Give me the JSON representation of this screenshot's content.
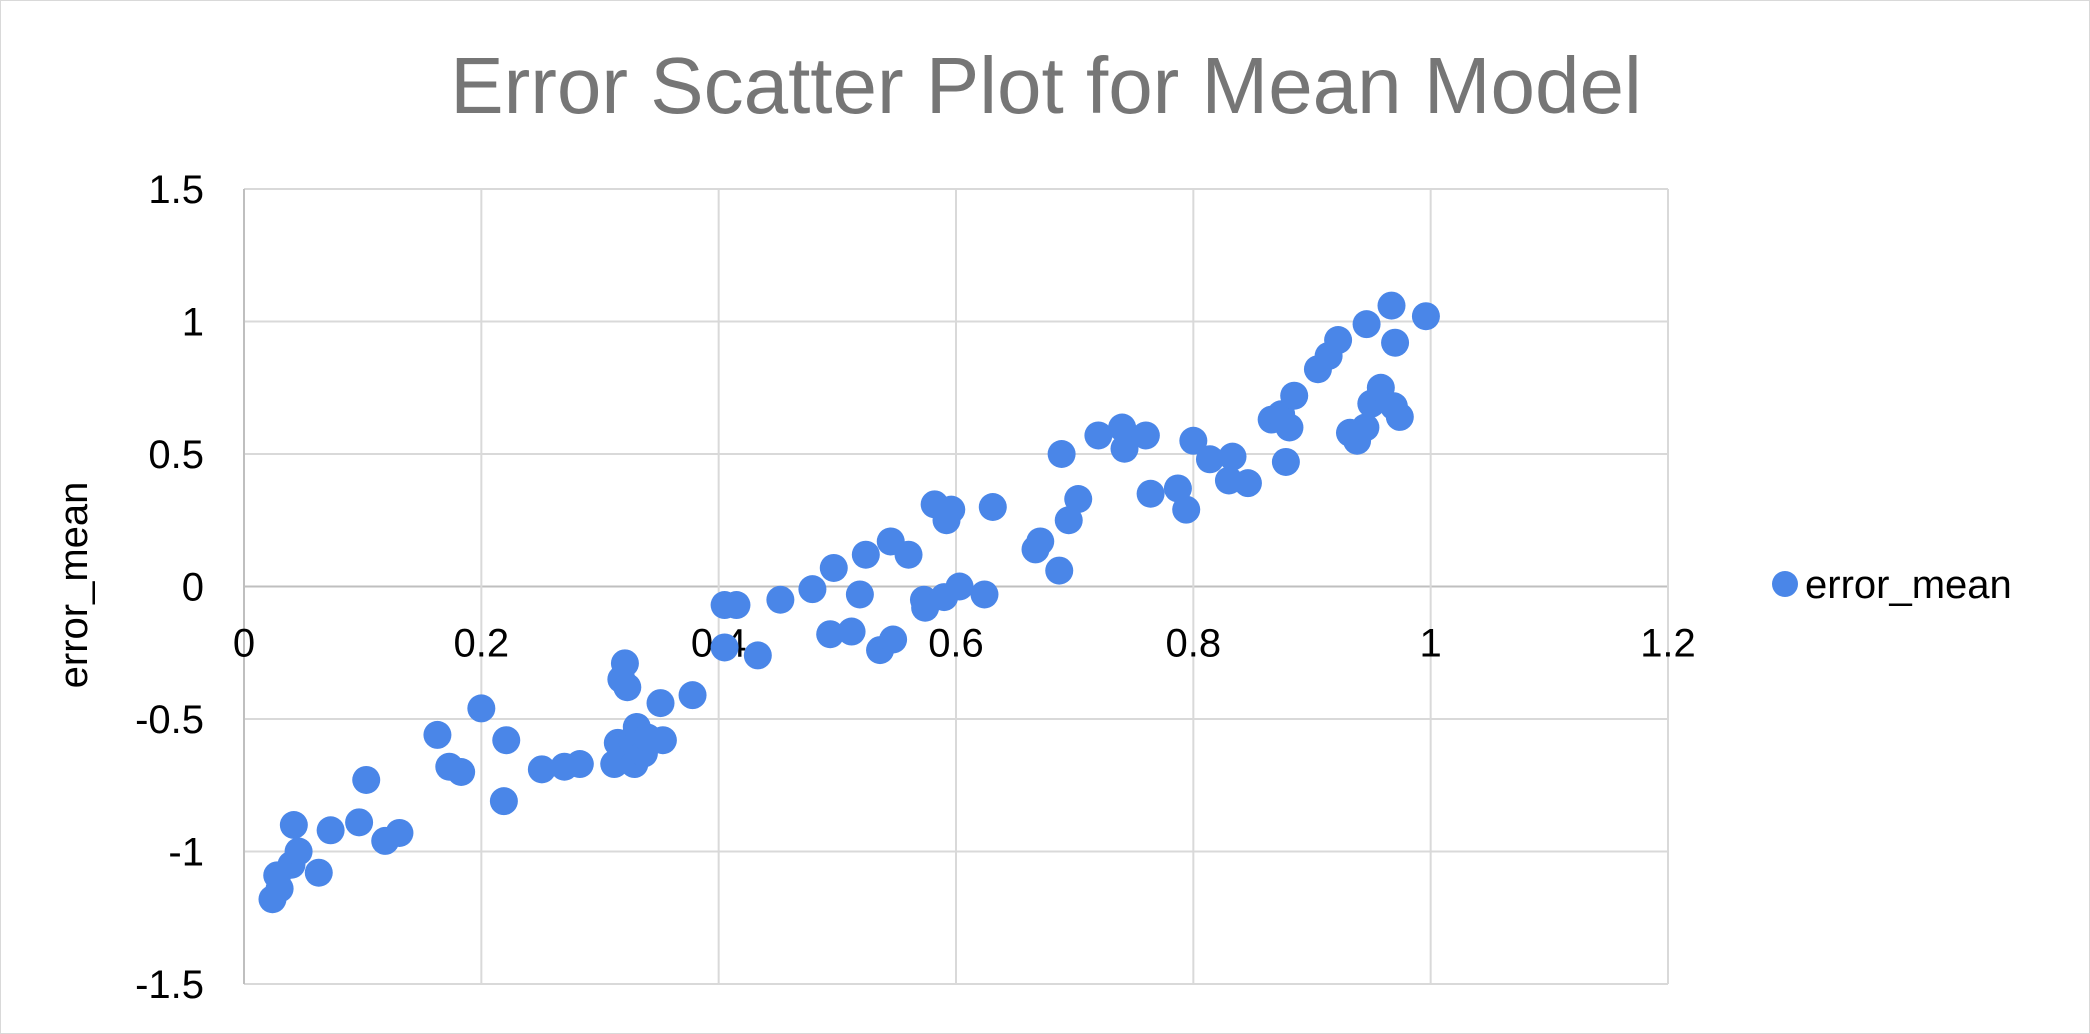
{
  "chart_data": {
    "type": "scatter",
    "title": "Error Scatter Plot for Mean Model",
    "xlabel": "",
    "ylabel": "error_mean",
    "xlim": [
      0,
      1.2
    ],
    "ylim": [
      -1.5,
      1.5
    ],
    "x_ticks": [
      "0",
      "0.2",
      "0.4",
      "0.6",
      "0.8",
      "1",
      "1.2"
    ],
    "y_ticks": [
      "1.5",
      "1",
      "0.5",
      "0",
      "-0.5",
      "-1",
      "-1.5"
    ],
    "grid": true,
    "legend_position": "right",
    "marker_color": "#4A86E8",
    "series": [
      {
        "name": "error_mean",
        "points": [
          [
            0.024,
            -1.18
          ],
          [
            0.03,
            -1.14
          ],
          [
            0.028,
            -1.09
          ],
          [
            0.04,
            -1.05
          ],
          [
            0.046,
            -1.0
          ],
          [
            0.042,
            -0.9
          ],
          [
            0.063,
            -1.08
          ],
          [
            0.073,
            -0.92
          ],
          [
            0.097,
            -0.89
          ],
          [
            0.103,
            -0.73
          ],
          [
            0.119,
            -0.96
          ],
          [
            0.131,
            -0.93
          ],
          [
            0.163,
            -0.56
          ],
          [
            0.173,
            -0.68
          ],
          [
            0.183,
            -0.7
          ],
          [
            0.2,
            -0.46
          ],
          [
            0.219,
            -0.81
          ],
          [
            0.221,
            -0.58
          ],
          [
            0.251,
            -0.69
          ],
          [
            0.27,
            -0.68
          ],
          [
            0.283,
            -0.67
          ],
          [
            0.312,
            -0.67
          ],
          [
            0.315,
            -0.59
          ],
          [
            0.318,
            -0.35
          ],
          [
            0.321,
            -0.29
          ],
          [
            0.323,
            -0.38
          ],
          [
            0.327,
            -0.58
          ],
          [
            0.329,
            -0.67
          ],
          [
            0.331,
            -0.53
          ],
          [
            0.337,
            -0.63
          ],
          [
            0.34,
            -0.57
          ],
          [
            0.351,
            -0.44
          ],
          [
            0.353,
            -0.58
          ],
          [
            0.378,
            -0.41
          ],
          [
            0.405,
            -0.23
          ],
          [
            0.405,
            -0.07
          ],
          [
            0.415,
            -0.07
          ],
          [
            0.433,
            -0.26
          ],
          [
            0.452,
            -0.05
          ],
          [
            0.479,
            -0.01
          ],
          [
            0.494,
            -0.18
          ],
          [
            0.497,
            0.07
          ],
          [
            0.512,
            -0.17
          ],
          [
            0.519,
            -0.03
          ],
          [
            0.524,
            0.12
          ],
          [
            0.536,
            -0.24
          ],
          [
            0.545,
            0.17
          ],
          [
            0.547,
            -0.2
          ],
          [
            0.56,
            0.12
          ],
          [
            0.573,
            -0.05
          ],
          [
            0.574,
            -0.08
          ],
          [
            0.582,
            0.31
          ],
          [
            0.59,
            -0.04
          ],
          [
            0.592,
            0.25
          ],
          [
            0.596,
            0.29
          ],
          [
            0.603,
            0.0
          ],
          [
            0.624,
            -0.03
          ],
          [
            0.631,
            0.3
          ],
          [
            0.667,
            0.14
          ],
          [
            0.671,
            0.17
          ],
          [
            0.687,
            0.06
          ],
          [
            0.689,
            0.5
          ],
          [
            0.695,
            0.25
          ],
          [
            0.703,
            0.33
          ],
          [
            0.72,
            0.57
          ],
          [
            0.74,
            0.6
          ],
          [
            0.742,
            0.52
          ],
          [
            0.76,
            0.57
          ],
          [
            0.764,
            0.35
          ],
          [
            0.787,
            0.37
          ],
          [
            0.794,
            0.29
          ],
          [
            0.8,
            0.55
          ],
          [
            0.814,
            0.48
          ],
          [
            0.83,
            0.4
          ],
          [
            0.833,
            0.49
          ],
          [
            0.846,
            0.39
          ],
          [
            0.866,
            0.63
          ],
          [
            0.874,
            0.65
          ],
          [
            0.878,
            0.47
          ],
          [
            0.881,
            0.6
          ],
          [
            0.885,
            0.72
          ],
          [
            0.905,
            0.82
          ],
          [
            0.914,
            0.87
          ],
          [
            0.922,
            0.93
          ],
          [
            0.932,
            0.58
          ],
          [
            0.938,
            0.55
          ],
          [
            0.945,
            0.6
          ],
          [
            0.946,
            0.99
          ],
          [
            0.95,
            0.69
          ],
          [
            0.958,
            0.75
          ],
          [
            0.967,
            1.06
          ],
          [
            0.969,
            0.68
          ],
          [
            0.97,
            0.92
          ],
          [
            0.974,
            0.64
          ],
          [
            0.996,
            1.02
          ]
        ]
      }
    ]
  }
}
